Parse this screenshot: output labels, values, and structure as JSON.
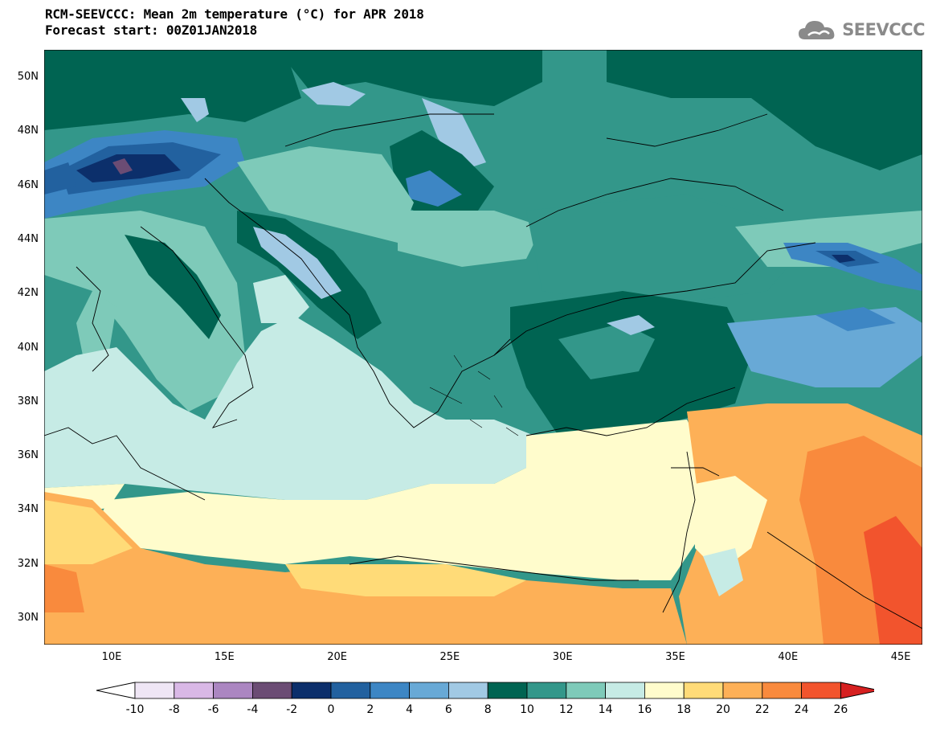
{
  "title": {
    "line1": "RCM-SEEVCCC: Mean 2m temperature (°C) for APR 2018",
    "line2": "Forecast start: 00Z01JAN2018"
  },
  "logo": {
    "text": "SEEVCCC",
    "icon": "cloud-icon",
    "color": "#8a8a8a"
  },
  "map": {
    "region": "Mediterranean / Black Sea",
    "lon_range": [
      7,
      46
    ],
    "lat_range": [
      29,
      51
    ],
    "lat_ticks": [
      "50N",
      "48N",
      "46N",
      "44N",
      "42N",
      "40N",
      "38N",
      "36N",
      "34N",
      "32N",
      "30N"
    ],
    "lon_ticks": [
      "10E",
      "15E",
      "20E",
      "25E",
      "30E",
      "35E",
      "40E",
      "45E"
    ]
  },
  "colorbar": {
    "labels": [
      "-10",
      "-8",
      "-6",
      "-4",
      "-2",
      "0",
      "2",
      "4",
      "6",
      "8",
      "10",
      "12",
      "14",
      "16",
      "18",
      "20",
      "22",
      "24",
      "26"
    ],
    "colors": [
      "#efe6f5",
      "#d9b8e6",
      "#ab86c1",
      "#6b4c74",
      "#0c2f6b",
      "#22619f",
      "#3d86c4",
      "#68a9d6",
      "#a1c9e4",
      "#006452",
      "#33978a",
      "#7ecab9",
      "#c6ebe5",
      "#fffccc",
      "#ffdb78",
      "#fdb057",
      "#f98a3d",
      "#f2542d"
    ],
    "under_color": "#ffffff",
    "over_color": "#d62020"
  }
}
